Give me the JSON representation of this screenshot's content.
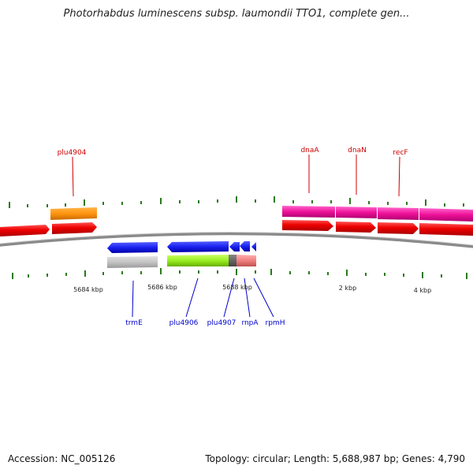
{
  "header": {
    "title": "Photorhabdus luminescens subsp. laumondii TTO1, complete gen..."
  },
  "footer": {
    "accession": "Accession: NC_005126",
    "stats": "Topology: circular; Length: 5,688,987 bp; Genes: 4,790"
  },
  "colors": {
    "forward_label": "#cc0000",
    "reverse_label": "#0000cc",
    "tick": "#2a7a1a",
    "backbone": "#8a8a8a"
  },
  "scale_labels": [
    {
      "text": "5684 kbp"
    },
    {
      "text": "5686 kbp"
    },
    {
      "text": "5688 kbp"
    },
    {
      "text": "2 kbp"
    },
    {
      "text": "4 kbp"
    }
  ],
  "forward_gene_labels": [
    {
      "text": "plu4904"
    },
    {
      "text": "dnaA"
    },
    {
      "text": "dnaN"
    },
    {
      "text": "recF"
    }
  ],
  "reverse_gene_labels": [
    {
      "text": "trmE"
    },
    {
      "text": "plu4906"
    },
    {
      "text": "plu4907"
    },
    {
      "text": "rnpA"
    },
    {
      "text": "rpmH"
    }
  ]
}
